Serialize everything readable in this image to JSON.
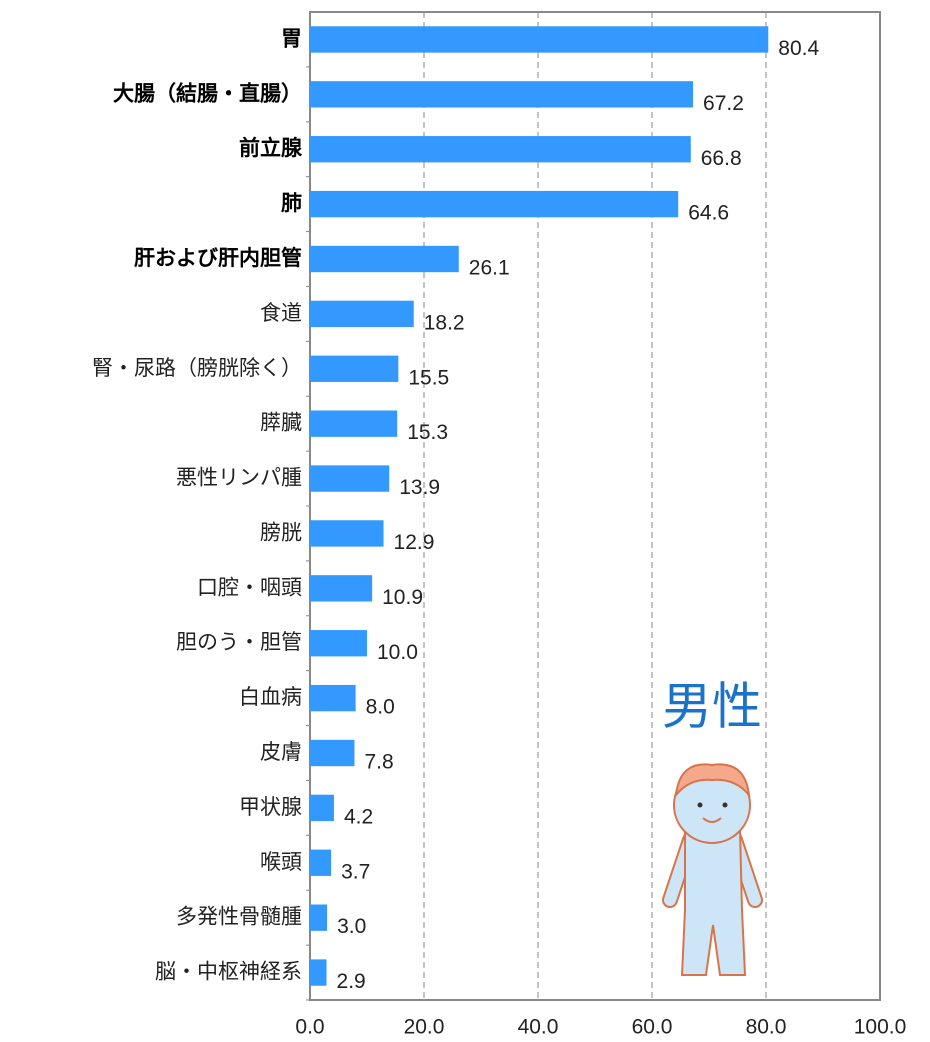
{
  "chart_data": {
    "type": "bar",
    "orientation": "horizontal",
    "annotation": "男性",
    "categories": [
      "胃",
      "大腸（結腸・直腸）",
      "前立腺",
      "肺",
      "肝および肝内胆管",
      "食道",
      "腎・尿路（膀胱除く）",
      "膵臓",
      "悪性リンパ腫",
      "膀胱",
      "口腔・咽頭",
      "胆のう・胆管",
      "白血病",
      "皮膚",
      "甲状腺",
      "喉頭",
      "多発性骨髄腫",
      "脳・中枢神経系"
    ],
    "values": [
      80.4,
      67.2,
      66.8,
      64.6,
      26.1,
      18.2,
      15.5,
      15.3,
      13.9,
      12.9,
      10.9,
      10.0,
      8.0,
      7.8,
      4.2,
      3.7,
      3.0,
      2.9
    ],
    "value_labels": [
      "80.4",
      "67.2",
      "66.8",
      "64.6",
      "26.1",
      "18.2",
      "15.5",
      "15.3",
      "13.9",
      "12.9",
      "10.9",
      "10.0",
      "8.0",
      "7.8",
      "4.2",
      "3.7",
      "3.0",
      "2.9"
    ],
    "color": "#3399ff",
    "xlim": [
      0,
      100
    ],
    "xticks": [
      {
        "value": 0,
        "label": "0.0"
      },
      {
        "value": 20,
        "label": "20.0"
      },
      {
        "value": 40,
        "label": "40.0"
      },
      {
        "value": 60,
        "label": "60.0"
      },
      {
        "value": 80,
        "label": "80.0"
      },
      {
        "value": 100,
        "label": "100.0"
      }
    ],
    "grid": true
  }
}
